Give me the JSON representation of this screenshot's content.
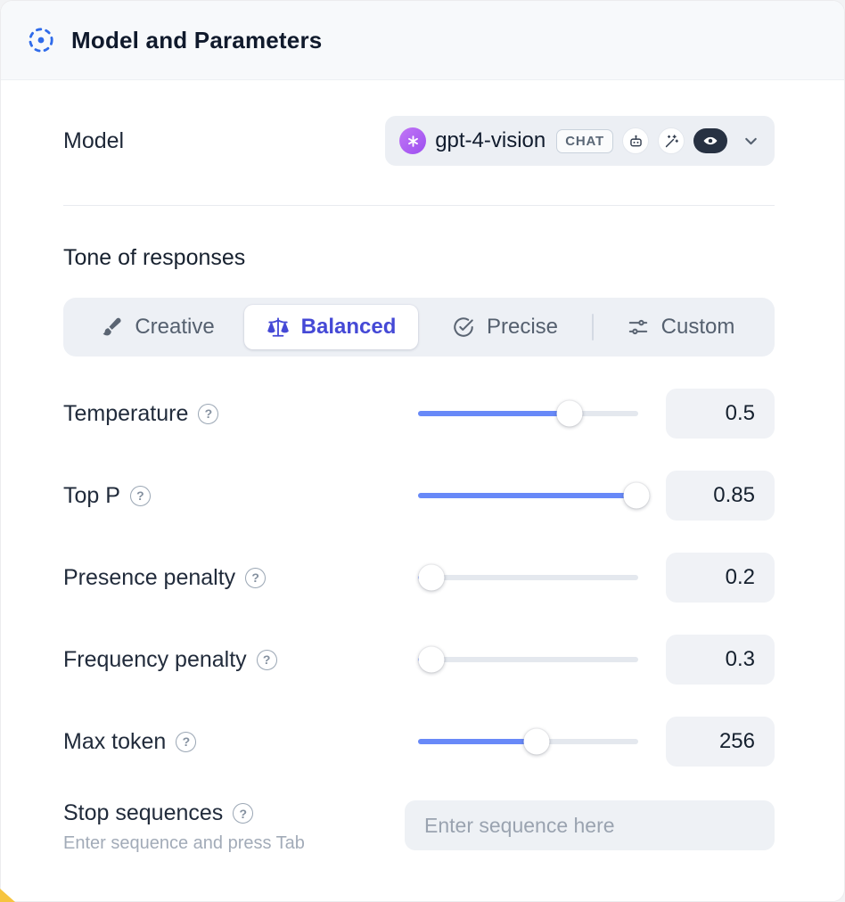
{
  "header": {
    "title": "Model and Parameters"
  },
  "model": {
    "label": "Model",
    "selected": "gpt-4-vision",
    "type_badge": "CHAT",
    "capability_icons": [
      "openai-logo",
      "bot-icon",
      "wand-icon",
      "vision-icon"
    ]
  },
  "tone": {
    "heading": "Tone of responses",
    "options": [
      {
        "label": "Creative",
        "icon": "brush-icon",
        "selected": false
      },
      {
        "label": "Balanced",
        "icon": "scales-icon",
        "selected": true
      },
      {
        "label": "Precise",
        "icon": "check-circle-icon",
        "selected": false
      },
      {
        "label": "Custom",
        "icon": "sliders-icon",
        "selected": false
      }
    ]
  },
  "parameters": [
    {
      "label": "Temperature",
      "value": "0.5",
      "percent": 69
    },
    {
      "label": "Top P",
      "value": "0.85",
      "percent": 99
    },
    {
      "label": "Presence penalty",
      "value": "0.2",
      "percent": 6
    },
    {
      "label": "Frequency penalty",
      "value": "0.3",
      "percent": 6
    },
    {
      "label": "Max token",
      "value": "256",
      "percent": 54
    }
  ],
  "stop_sequences": {
    "label": "Stop sequences",
    "hint": "Enter sequence and press Tab",
    "placeholder": "Enter sequence here"
  },
  "icons": {
    "help": "?"
  },
  "colors": {
    "accent_blue": "#4549d6",
    "slider_blue": "#6889f8",
    "openai_purple": "#a85df1",
    "header_bg": "#f7f9fb",
    "corner_accent": "#f6c43f"
  }
}
